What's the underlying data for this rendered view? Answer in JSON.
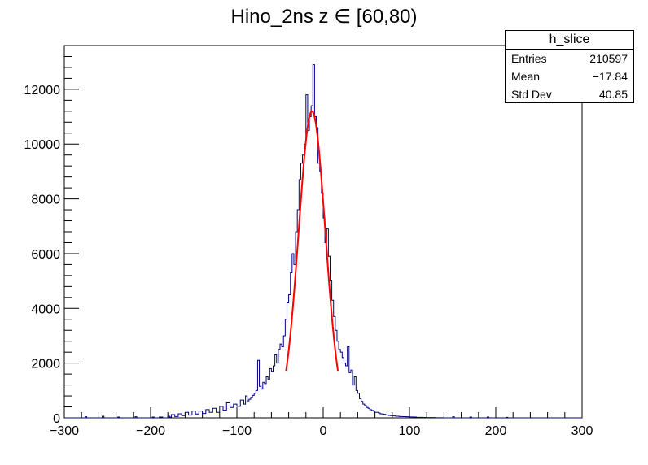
{
  "chart_data": {
    "type": "histogram",
    "title": "Hino_2ns z ∈ [60,80)",
    "xlabel": "",
    "ylabel": "",
    "xlim": [
      -300,
      300
    ],
    "ylim": [
      0,
      13600
    ],
    "x_ticks": [
      "−300",
      "−200",
      "−100",
      "0",
      "100",
      "200",
      "300"
    ],
    "x_tick_values": [
      -300,
      -200,
      -100,
      0,
      100,
      200,
      300
    ],
    "y_ticks": [
      "0",
      "2000",
      "4000",
      "6000",
      "8000",
      "10000",
      "12000"
    ],
    "y_tick_values": [
      0,
      2000,
      4000,
      6000,
      8000,
      10000,
      12000
    ],
    "bin_width": 2,
    "series": [
      {
        "style": "step",
        "color": "#000080",
        "points": [
          [
            -300,
            0
          ],
          [
            -278,
            0
          ],
          [
            -276,
            40
          ],
          [
            -274,
            0
          ],
          [
            -258,
            0
          ],
          [
            -256,
            60
          ],
          [
            -254,
            0
          ],
          [
            -240,
            0
          ],
          [
            -238,
            30
          ],
          [
            -236,
            0
          ],
          [
            -220,
            0
          ],
          [
            -218,
            40
          ],
          [
            -216,
            0
          ],
          [
            -200,
            0
          ],
          [
            -198,
            30
          ],
          [
            -196,
            0
          ],
          [
            -190,
            30
          ],
          [
            -186,
            0
          ],
          [
            -180,
            60
          ],
          [
            -178,
            30
          ],
          [
            -176,
            120
          ],
          [
            -172,
            50
          ],
          [
            -168,
            150
          ],
          [
            -164,
            80
          ],
          [
            -160,
            200
          ],
          [
            -156,
            100
          ],
          [
            -152,
            250
          ],
          [
            -148,
            140
          ],
          [
            -144,
            250
          ],
          [
            -140,
            160
          ],
          [
            -136,
            300
          ],
          [
            -132,
            200
          ],
          [
            -128,
            350
          ],
          [
            -124,
            200
          ],
          [
            -120,
            420
          ],
          [
            -116,
            280
          ],
          [
            -112,
            550
          ],
          [
            -108,
            380
          ],
          [
            -104,
            500
          ],
          [
            -100,
            420
          ],
          [
            -96,
            650
          ],
          [
            -92,
            500
          ],
          [
            -90,
            800
          ],
          [
            -88,
            620
          ],
          [
            -86,
            680
          ],
          [
            -84,
            750
          ],
          [
            -82,
            820
          ],
          [
            -80,
            900
          ],
          [
            -78,
            1000
          ],
          [
            -76,
            2100
          ],
          [
            -74,
            1150
          ],
          [
            -72,
            1050
          ],
          [
            -70,
            1300
          ],
          [
            -68,
            1250
          ],
          [
            -66,
            1500
          ],
          [
            -64,
            1400
          ],
          [
            -62,
            1800
          ],
          [
            -60,
            1700
          ],
          [
            -58,
            1900
          ],
          [
            -56,
            2300
          ],
          [
            -54,
            2000
          ],
          [
            -52,
            2500
          ],
          [
            -50,
            2700
          ],
          [
            -48,
            2600
          ],
          [
            -46,
            3000
          ],
          [
            -44,
            3600
          ],
          [
            -42,
            4200
          ],
          [
            -40,
            4500
          ],
          [
            -38,
            5300
          ],
          [
            -36,
            6000
          ],
          [
            -34,
            5600
          ],
          [
            -32,
            6800
          ],
          [
            -30,
            7600
          ],
          [
            -28,
            8700
          ],
          [
            -26,
            9300
          ],
          [
            -24,
            9600
          ],
          [
            -22,
            10000
          ],
          [
            -20,
            11800
          ],
          [
            -18,
            10500
          ],
          [
            -16,
            11000
          ],
          [
            -14,
            11400
          ],
          [
            -12,
            12900
          ],
          [
            -10,
            11000
          ],
          [
            -8,
            10600
          ],
          [
            -6,
            9300
          ],
          [
            -4,
            9000
          ],
          [
            -2,
            8200
          ],
          [
            0,
            7300
          ],
          [
            2,
            6400
          ],
          [
            4,
            6900
          ],
          [
            6,
            5900
          ],
          [
            8,
            5000
          ],
          [
            10,
            4300
          ],
          [
            12,
            3700
          ],
          [
            14,
            3200
          ],
          [
            16,
            2800
          ],
          [
            18,
            2500
          ],
          [
            20,
            2400
          ],
          [
            22,
            2200
          ],
          [
            24,
            2000
          ],
          [
            26,
            1900
          ],
          [
            28,
            2600
          ],
          [
            30,
            1650
          ],
          [
            32,
            1750
          ],
          [
            34,
            1200
          ],
          [
            36,
            1500
          ],
          [
            38,
            1000
          ],
          [
            40,
            900
          ],
          [
            42,
            700
          ],
          [
            44,
            600
          ],
          [
            46,
            500
          ],
          [
            48,
            450
          ],
          [
            50,
            380
          ],
          [
            52,
            350
          ],
          [
            54,
            300
          ],
          [
            56,
            270
          ],
          [
            58,
            250
          ],
          [
            60,
            200
          ],
          [
            62,
            200
          ],
          [
            64,
            180
          ],
          [
            66,
            150
          ],
          [
            68,
            140
          ],
          [
            70,
            130
          ],
          [
            72,
            110
          ],
          [
            74,
            100
          ],
          [
            76,
            90
          ],
          [
            78,
            80
          ],
          [
            80,
            70
          ],
          [
            84,
            60
          ],
          [
            88,
            50
          ],
          [
            92,
            45
          ],
          [
            96,
            40
          ],
          [
            100,
            35
          ],
          [
            104,
            30
          ],
          [
            108,
            20
          ],
          [
            112,
            20
          ],
          [
            116,
            15
          ],
          [
            120,
            10
          ],
          [
            124,
            10
          ],
          [
            130,
            5
          ],
          [
            140,
            0
          ],
          [
            150,
            40
          ],
          [
            152,
            0
          ],
          [
            168,
            0
          ],
          [
            170,
            30
          ],
          [
            172,
            0
          ],
          [
            188,
            0
          ],
          [
            190,
            30
          ],
          [
            192,
            0
          ],
          [
            210,
            0
          ],
          [
            212,
            20
          ],
          [
            214,
            0
          ],
          [
            300,
            0
          ]
        ]
      },
      {
        "style": "line",
        "color": "#ff0000",
        "gaussian": {
          "mean": -13,
          "sigma": 15.5,
          "amplitude": 11200,
          "xmin": -43,
          "xmax": 17
        }
      }
    ],
    "grid": false
  },
  "stats_box": {
    "title": "h_slice",
    "rows": [
      {
        "label": "Entries",
        "value": "210597"
      },
      {
        "label": "Mean",
        "value": "−17.84"
      },
      {
        "label": "Std Dev",
        "value": "40.85"
      }
    ]
  }
}
